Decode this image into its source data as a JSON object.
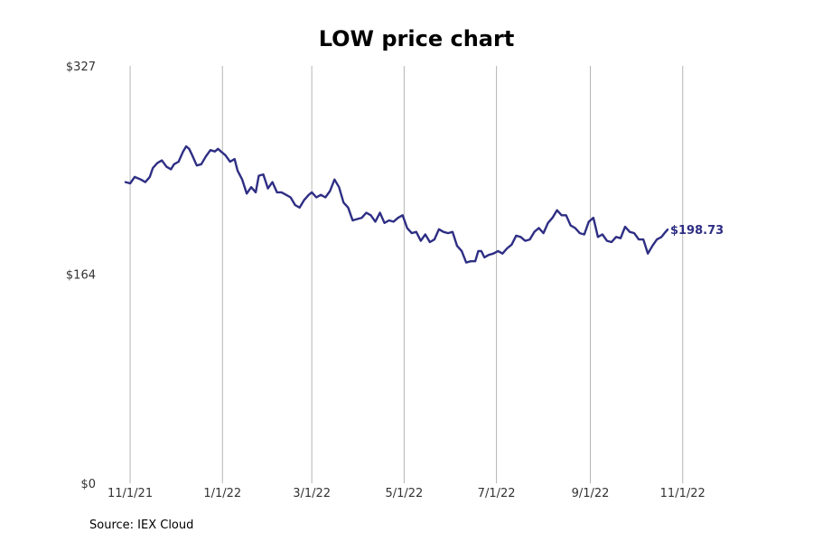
{
  "chart_data": {
    "type": "line",
    "title": "LOW price chart",
    "xlabel": "",
    "ylabel": "",
    "ylim": [
      0,
      327
    ],
    "y_ticks": [
      {
        "value": 0,
        "label": "$0"
      },
      {
        "value": 164,
        "label": "$164"
      },
      {
        "value": 327,
        "label": "$327"
      }
    ],
    "x_range": [
      "2021-10-26",
      "2022-12-01"
    ],
    "x_ticks": [
      {
        "date": "2021-11-01",
        "label": "11/1/21"
      },
      {
        "date": "2022-01-01",
        "label": "1/1/22"
      },
      {
        "date": "2022-03-01",
        "label": "3/1/22"
      },
      {
        "date": "2022-05-01",
        "label": "5/1/22"
      },
      {
        "date": "2022-07-01",
        "label": "7/1/22"
      },
      {
        "date": "2022-09-01",
        "label": "9/1/22"
      },
      {
        "date": "2022-11-01",
        "label": "11/1/22"
      }
    ],
    "grid": "vertical",
    "series": [
      {
        "name": "LOW",
        "color": "#2e2e84",
        "end_label": "$198.73",
        "points": [
          [
            "2021-10-29",
            236
          ],
          [
            "2021-11-01",
            235
          ],
          [
            "2021-11-04",
            240
          ],
          [
            "2021-11-08",
            238
          ],
          [
            "2021-11-11",
            236
          ],
          [
            "2021-11-14",
            240
          ],
          [
            "2021-11-16",
            247
          ],
          [
            "2021-11-19",
            251
          ],
          [
            "2021-11-22",
            253
          ],
          [
            "2021-11-25",
            248
          ],
          [
            "2021-11-28",
            246
          ],
          [
            "2021-11-30",
            250
          ],
          [
            "2021-12-03",
            252
          ],
          [
            "2021-12-06",
            260
          ],
          [
            "2021-12-08",
            264
          ],
          [
            "2021-12-10",
            262
          ],
          [
            "2021-12-12",
            257
          ],
          [
            "2021-12-15",
            249
          ],
          [
            "2021-12-18",
            250
          ],
          [
            "2021-12-21",
            256
          ],
          [
            "2021-12-24",
            261
          ],
          [
            "2021-12-27",
            260
          ],
          [
            "2021-12-29",
            262
          ],
          [
            "2021-12-31",
            260
          ],
          [
            "2022-01-03",
            257
          ],
          [
            "2022-01-06",
            252
          ],
          [
            "2022-01-09",
            254
          ],
          [
            "2022-01-11",
            245
          ],
          [
            "2022-01-14",
            238
          ],
          [
            "2022-01-17",
            227
          ],
          [
            "2022-01-20",
            232
          ],
          [
            "2022-01-23",
            228
          ],
          [
            "2022-01-25",
            241
          ],
          [
            "2022-01-28",
            242
          ],
          [
            "2022-01-31",
            231
          ],
          [
            "2022-02-03",
            236
          ],
          [
            "2022-02-06",
            228
          ],
          [
            "2022-02-09",
            228
          ],
          [
            "2022-02-12",
            226
          ],
          [
            "2022-02-15",
            224
          ],
          [
            "2022-02-18",
            218
          ],
          [
            "2022-02-21",
            216
          ],
          [
            "2022-02-24",
            222
          ],
          [
            "2022-02-27",
            226
          ],
          [
            "2022-03-01",
            228
          ],
          [
            "2022-03-04",
            224
          ],
          [
            "2022-03-07",
            226
          ],
          [
            "2022-03-10",
            224
          ],
          [
            "2022-03-13",
            229
          ],
          [
            "2022-03-16",
            238
          ],
          [
            "2022-03-19",
            232
          ],
          [
            "2022-03-22",
            220
          ],
          [
            "2022-03-25",
            216
          ],
          [
            "2022-03-28",
            206
          ],
          [
            "2022-03-31",
            207
          ],
          [
            "2022-04-03",
            208
          ],
          [
            "2022-04-06",
            212
          ],
          [
            "2022-04-09",
            210
          ],
          [
            "2022-04-12",
            205
          ],
          [
            "2022-04-15",
            212
          ],
          [
            "2022-04-18",
            204
          ],
          [
            "2022-04-21",
            206
          ],
          [
            "2022-04-24",
            205
          ],
          [
            "2022-04-27",
            208
          ],
          [
            "2022-04-30",
            210
          ],
          [
            "2022-05-03",
            200
          ],
          [
            "2022-05-06",
            196
          ],
          [
            "2022-05-09",
            197
          ],
          [
            "2022-05-12",
            190
          ],
          [
            "2022-05-15",
            195
          ],
          [
            "2022-05-18",
            189
          ],
          [
            "2022-05-21",
            191
          ],
          [
            "2022-05-24",
            199
          ],
          [
            "2022-05-27",
            197
          ],
          [
            "2022-05-30",
            196
          ],
          [
            "2022-06-02",
            197
          ],
          [
            "2022-06-05",
            186
          ],
          [
            "2022-06-08",
            182
          ],
          [
            "2022-06-11",
            173
          ],
          [
            "2022-06-14",
            174
          ],
          [
            "2022-06-17",
            174
          ],
          [
            "2022-06-19",
            182
          ],
          [
            "2022-06-21",
            182
          ],
          [
            "2022-06-23",
            177
          ],
          [
            "2022-06-26",
            179
          ],
          [
            "2022-06-29",
            180
          ],
          [
            "2022-07-02",
            182
          ],
          [
            "2022-07-05",
            180
          ],
          [
            "2022-07-08",
            184
          ],
          [
            "2022-07-11",
            187
          ],
          [
            "2022-07-14",
            194
          ],
          [
            "2022-07-17",
            193
          ],
          [
            "2022-07-20",
            190
          ],
          [
            "2022-07-23",
            191
          ],
          [
            "2022-07-26",
            197
          ],
          [
            "2022-07-29",
            200
          ],
          [
            "2022-08-01",
            196
          ],
          [
            "2022-08-04",
            204
          ],
          [
            "2022-08-07",
            208
          ],
          [
            "2022-08-10",
            214
          ],
          [
            "2022-08-13",
            210
          ],
          [
            "2022-08-16",
            210
          ],
          [
            "2022-08-19",
            202
          ],
          [
            "2022-08-22",
            200
          ],
          [
            "2022-08-25",
            196
          ],
          [
            "2022-08-28",
            195
          ],
          [
            "2022-08-31",
            205
          ],
          [
            "2022-09-03",
            208
          ],
          [
            "2022-09-06",
            193
          ],
          [
            "2022-09-09",
            195
          ],
          [
            "2022-09-12",
            190
          ],
          [
            "2022-09-15",
            189
          ],
          [
            "2022-09-18",
            193
          ],
          [
            "2022-09-21",
            192
          ],
          [
            "2022-09-24",
            201
          ],
          [
            "2022-09-27",
            197
          ],
          [
            "2022-09-30",
            196
          ],
          [
            "2022-10-03",
            191
          ],
          [
            "2022-10-06",
            191
          ],
          [
            "2022-10-09",
            180
          ],
          [
            "2022-10-12",
            186
          ],
          [
            "2022-10-15",
            191
          ],
          [
            "2022-10-18",
            193
          ],
          [
            "2022-10-20",
            196
          ],
          [
            "2022-10-22",
            198.73
          ]
        ]
      }
    ]
  },
  "footer": {
    "source": "Source: IEX Cloud"
  }
}
